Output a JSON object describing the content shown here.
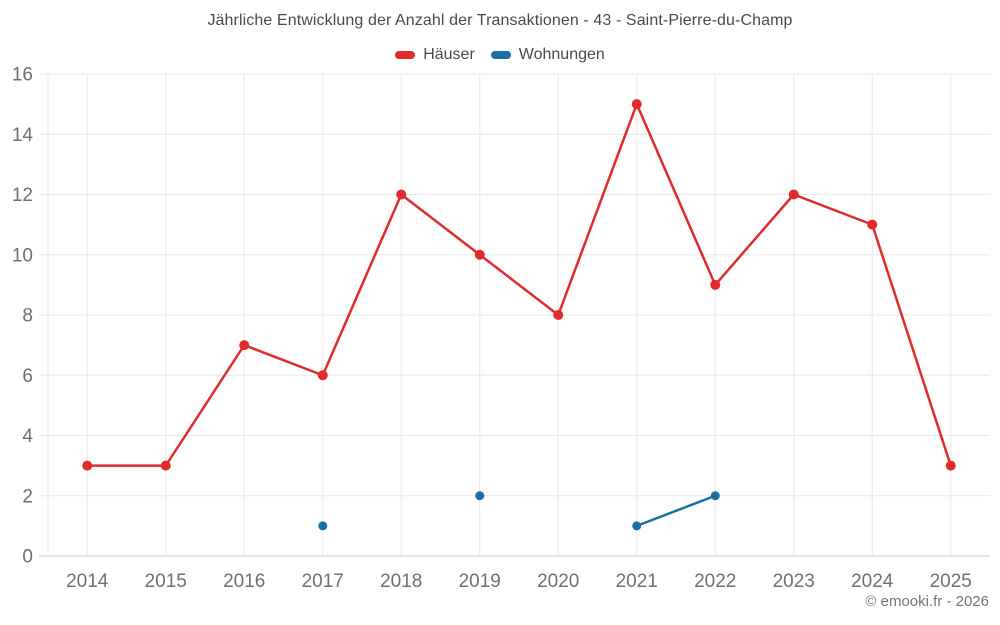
{
  "chart_data": {
    "type": "line",
    "title": "Jährliche Entwicklung der Anzahl der Transaktionen - 43 - Saint-Pierre-du-Champ",
    "categories": [
      "2014",
      "2015",
      "2016",
      "2017",
      "2018",
      "2019",
      "2020",
      "2021",
      "2022",
      "2023",
      "2024",
      "2025"
    ],
    "series": [
      {
        "name": "Häuser",
        "color": "#e02b2b",
        "marker_radius": 5,
        "values": [
          3,
          3,
          7,
          6,
          12,
          10,
          8,
          15,
          9,
          12,
          11,
          3
        ]
      },
      {
        "name": "Wohnungen",
        "color": "#1c6ea4",
        "marker_radius": 4.5,
        "values": [
          null,
          null,
          null,
          1,
          null,
          2,
          null,
          1,
          2,
          null,
          null,
          null
        ]
      }
    ],
    "ylim": [
      0,
      16
    ],
    "ytick_step": 2,
    "yticks": [
      0,
      2,
      4,
      6,
      8,
      10,
      12,
      14,
      16
    ],
    "xlabel": "",
    "ylabel": "",
    "grid": true,
    "legend_position": "top"
  },
  "footer": {
    "copyright": "© emooki.fr - 2026"
  },
  "colors": {
    "title_text": "#4a4a4a",
    "axis_text": "#707070",
    "grid_line": "#e8e8e8",
    "axis_line": "#c9c9c9",
    "footer_text": "#757575",
    "background": "#ffffff"
  }
}
